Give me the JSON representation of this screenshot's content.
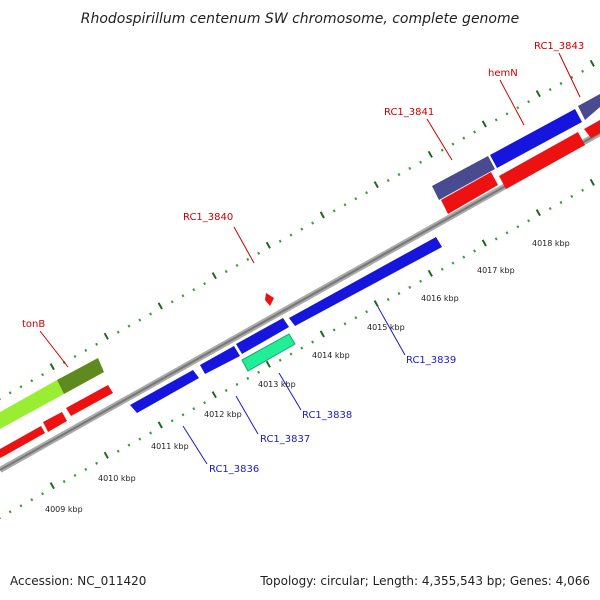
{
  "title": "Rhodospirillum centenum SW chromosome, complete genome",
  "footer": {
    "accession": "Accession: NC_011420",
    "topology": "Topology: circular; Length: 4,355,543 bp; Genes: 4,066"
  },
  "colors": {
    "background": "#ffffff",
    "backbone": "#888888",
    "label_top": "#cc0000",
    "label_bottom": "#1a1acc",
    "tick_dark": "#1c6b1c",
    "tick_light": "#35a035"
  },
  "scale_ticks": [
    "4009 kbp",
    "4010 kbp",
    "4011 kbp",
    "4012 kbp",
    "4013 kbp",
    "4014 kbp",
    "4015 kbp",
    "4016 kbp",
    "4017 kbp",
    "4018 kbp"
  ],
  "top_genes": [
    {
      "label": "tonB",
      "color": "#cc0000"
    },
    {
      "label": "RC1_3840",
      "color": "#cc0000"
    },
    {
      "label": "RC1_3841",
      "color": "#cc0000"
    },
    {
      "label": "hemN",
      "color": "#cc0000"
    },
    {
      "label": "RC1_3843",
      "color": "#cc0000"
    }
  ],
  "bottom_genes": [
    {
      "label": "RC1_3836",
      "color": "#1a1acc"
    },
    {
      "label": "RC1_3837",
      "color": "#1a1acc"
    },
    {
      "label": "RC1_3838",
      "color": "#1a1acc"
    },
    {
      "label": "RC1_3839",
      "color": "#1a1acc"
    }
  ],
  "feature_colors": {
    "cds_forward": "#ee1111",
    "cds_reverse": "#1515dd",
    "gene_purple": "#4a4a90",
    "gene_olive": "#5f8a1f",
    "gene_lime": "#99ee33",
    "gene_aqua": "#22ee99",
    "marker_red": "#ee1111"
  }
}
